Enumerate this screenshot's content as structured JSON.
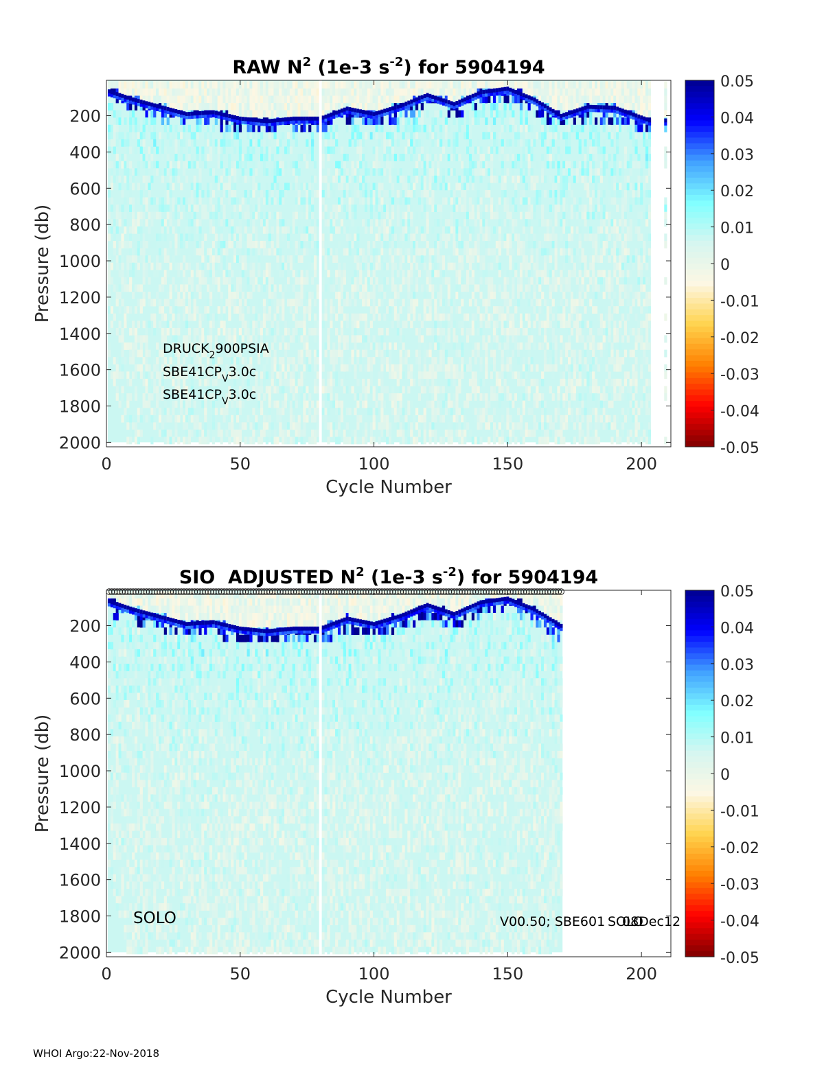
{
  "footer": "WHOI Argo:22-Nov-2018",
  "colormap": [
    "#7f0000",
    "#ff0000",
    "#ff8000",
    "#ffd34d",
    "#fdf7e3",
    "#d6f6f0",
    "#80ffff",
    "#40a0ff",
    "#0000ff",
    "#00008f"
  ],
  "chart_data": [
    {
      "type": "heatmap",
      "title": {
        "pre": "RAW N",
        "sup1": "2",
        "mid": " (1e-3 s",
        "sup2": "-2",
        "post": ") for 5904194"
      },
      "xlabel": "Cycle Number",
      "ylabel": "Pressure (db)",
      "xlim": [
        0,
        211
      ],
      "ylim": [
        2025,
        5
      ],
      "xticks": [
        0,
        50,
        100,
        150,
        200
      ],
      "yticks": [
        200,
        400,
        600,
        800,
        1000,
        1200,
        1400,
        1600,
        1800,
        2000
      ],
      "colorbar": {
        "range": [
          -0.05,
          0.05
        ],
        "ticks": [
          0.05,
          0.04,
          0.03,
          0.02,
          0.01,
          0,
          -0.01,
          -0.02,
          -0.03,
          -0.04,
          -0.05
        ]
      },
      "cycles_present": [
        1,
        203
      ],
      "missing_cycles": [
        80
      ],
      "extra_column_cycle": 209,
      "mixed_layer_depth_db": [
        [
          0,
          60
        ],
        [
          10,
          110
        ],
        [
          20,
          150
        ],
        [
          30,
          190
        ],
        [
          40,
          180
        ],
        [
          50,
          215
        ],
        [
          60,
          230
        ],
        [
          70,
          215
        ],
        [
          80,
          215
        ],
        [
          90,
          160
        ],
        [
          100,
          190
        ],
        [
          110,
          145
        ],
        [
          120,
          85
        ],
        [
          130,
          135
        ],
        [
          140,
          70
        ],
        [
          150,
          50
        ],
        [
          160,
          110
        ],
        [
          170,
          200
        ],
        [
          180,
          150
        ],
        [
          190,
          155
        ],
        [
          203,
          225
        ]
      ],
      "annotations": [
        {
          "base": "DRUCK",
          "sub": "2",
          "rest": "900PSIA"
        },
        {
          "base": "SBE41CP",
          "sub": "V",
          "rest": "3.0c"
        },
        {
          "base": "SBE41CP",
          "sub": "V",
          "rest": "3.0c"
        }
      ]
    },
    {
      "type": "heatmap",
      "title": {
        "pre": "SIO  ADJUSTED N",
        "sup1": "2",
        "mid": " (1e-3 s",
        "sup2": "-2",
        "post": ") for 5904194"
      },
      "xlabel": "Cycle Number",
      "ylabel": "Pressure (db)",
      "xlim": [
        0,
        211
      ],
      "ylim": [
        2025,
        5
      ],
      "xticks": [
        0,
        50,
        100,
        150,
        200
      ],
      "yticks": [
        200,
        400,
        600,
        800,
        1000,
        1200,
        1400,
        1600,
        1800,
        2000
      ],
      "colorbar": {
        "range": [
          -0.05,
          0.05
        ],
        "ticks": [
          0.05,
          0.04,
          0.03,
          0.02,
          0.01,
          0,
          -0.01,
          -0.02,
          -0.03,
          -0.04,
          -0.05
        ]
      },
      "cycles_present": [
        1,
        170
      ],
      "missing_cycles": [
        80
      ],
      "qc_marker_cycles": [
        1,
        170
      ],
      "mixed_layer_depth_db": [
        [
          0,
          60
        ],
        [
          10,
          110
        ],
        [
          20,
          150
        ],
        [
          30,
          190
        ],
        [
          40,
          180
        ],
        [
          50,
          215
        ],
        [
          60,
          230
        ],
        [
          70,
          215
        ],
        [
          80,
          215
        ],
        [
          90,
          160
        ],
        [
          100,
          190
        ],
        [
          110,
          145
        ],
        [
          120,
          85
        ],
        [
          130,
          135
        ],
        [
          140,
          70
        ],
        [
          150,
          50
        ],
        [
          160,
          110
        ],
        [
          170,
          200
        ]
      ],
      "annotations": [
        {
          "text": "SOLO"
        },
        {
          "text": "V00.50; SBE601"
        },
        {
          "text": "SOLO"
        },
        {
          "text": "08Dec12"
        }
      ]
    }
  ]
}
